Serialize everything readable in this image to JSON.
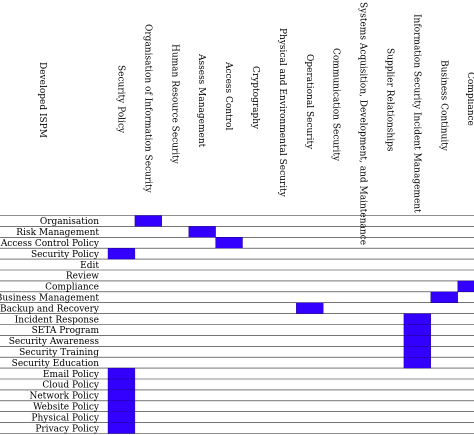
{
  "chart_data": {
    "type": "heatmap",
    "title": "",
    "row_header": "Developed ISPM",
    "columns": [
      "Security Policy",
      "Organisation of Information Security",
      "Human Resource Security",
      "Assess Management",
      "Access Control",
      "Cryptography",
      "Physical and Environmental Security",
      "Operational Security",
      "Communication Security",
      "Systems Acquisition, Development, and Maintenance",
      "Supplier Relationships",
      "Information Security Incident Management",
      "Business Continuity",
      "Compliance"
    ],
    "rows": [
      "Organisation",
      "Risk Management",
      "Access Control Policy",
      "Security Policy",
      "Edit",
      "Review",
      "Compliance",
      "Business Management",
      "Backup and Recovery",
      "Incident Response",
      "SETA Program",
      "Security Awareness",
      "Security Training",
      "Security Education",
      "Email Policy",
      "Cloud Policy",
      "Network Policy",
      "Website Policy",
      "Physical Policy",
      "Privacy Policy"
    ],
    "cells": [
      [
        0,
        1
      ],
      [
        1,
        3
      ],
      [
        2,
        4
      ],
      [
        3,
        0
      ],
      [
        6,
        13
      ],
      [
        7,
        12
      ],
      [
        8,
        7
      ],
      [
        9,
        11
      ],
      [
        10,
        11
      ],
      [
        11,
        11
      ],
      [
        12,
        11
      ],
      [
        13,
        11
      ],
      [
        14,
        0
      ],
      [
        15,
        0
      ],
      [
        16,
        0
      ],
      [
        17,
        0
      ],
      [
        18,
        0
      ],
      [
        19,
        0
      ]
    ],
    "fill_color": "#3300ff",
    "grid": true
  }
}
